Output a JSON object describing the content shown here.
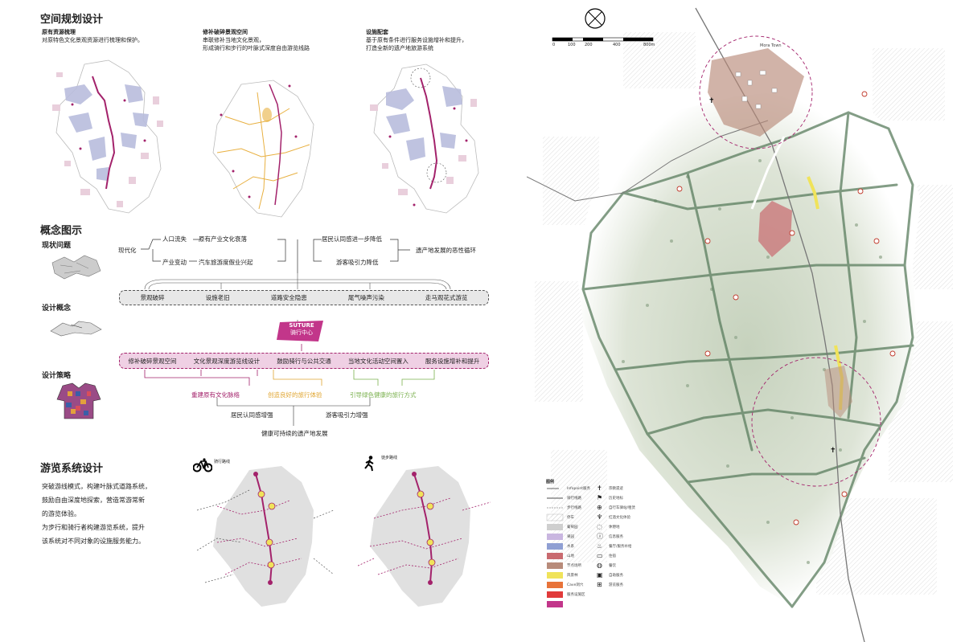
{
  "spatial": {
    "title": "空间规划设计",
    "panels": [
      {
        "heading": "原有资源梳理",
        "desc": [
          "对原特色文化景观资源进行梳理和保护。"
        ]
      },
      {
        "heading": "修补破碎景观空间",
        "desc": [
          "串联修补当地文化景观，",
          "形成骑行和步行的叶脉式深度自由游览线路"
        ]
      },
      {
        "heading": "设施配套",
        "desc": [
          "基于原有条件进行服务设施增补和提升，",
          "打造全新的遗产地旅游系统"
        ]
      }
    ]
  },
  "concept": {
    "title": "概念图示",
    "row_labels": [
      "现状问题",
      "设计概念",
      "设计策略"
    ],
    "causes": {
      "root": "现代化",
      "a": "人口流失",
      "b": "原有产业文化衰落",
      "c": "产业变动",
      "d": "汽车旅游度假业兴起"
    },
    "effects": {
      "a": "居民认同感进一步降低",
      "b": "游客吸引力降低",
      "result": "遗产地发展的恶性循环"
    },
    "problems": [
      "景观破碎",
      "设施老旧",
      "道路安全隐患",
      "尾气噪声污染",
      "走马观花式游览"
    ],
    "core": {
      "en": "SUTURE",
      "zh": "骑行中心"
    },
    "strategies": [
      "修补破碎景观空间",
      "文化景观深度游览线设计",
      "鼓励骑行与公共交通",
      "当地文化活动空间置入",
      "服务设施增补和提升"
    ],
    "goals": [
      "重建原有文化脉络",
      "创造良好的旅行体验",
      "引导绿色健康的旅行方式"
    ],
    "outcomes": [
      "居民认同感增强",
      "游客吸引力增强"
    ],
    "final": "健康可持续的遗产地发展"
  },
  "tour": {
    "title": "游览系统设计",
    "desc": [
      "突破游线模式，构建叶脉式道路系统，",
      "鼓励自由深度地探索，营造常游常新",
      "的游览体验。",
      "为步行和骑行者构建游览系统，提升",
      "该系统对不同对象的设施服务能力。"
    ],
    "maps": [
      {
        "label": "骑行路线"
      },
      {
        "label": "徒步路线"
      }
    ]
  },
  "plan": {
    "scale": [
      "0",
      "100",
      "200",
      "400",
      "800m"
    ],
    "town_label": "Mora Town",
    "legend_title": "图例",
    "legend_left": [
      "Infopoint服务",
      "骑行线路",
      "步行线路",
      "停车",
      "葡萄园",
      "果园",
      "水系",
      "山地",
      "节点场所",
      "风景林",
      "Cave洞穴",
      "服务设施区"
    ],
    "legend_right": [
      "宗教遗迹",
      "历史地标",
      "自行车驿站/租赁",
      "红酒文化体验",
      "休憩地",
      "信息服务",
      "餐厅/服务补给",
      "住宿",
      "餐饮",
      "自助服务",
      "游览服务"
    ],
    "colors": {
      "accent": "#a3226b",
      "pink_fill": "#e9cfdc",
      "route": "#5a7d5e",
      "yellow": "#f0e35a",
      "blue": "#b9bddd"
    }
  }
}
